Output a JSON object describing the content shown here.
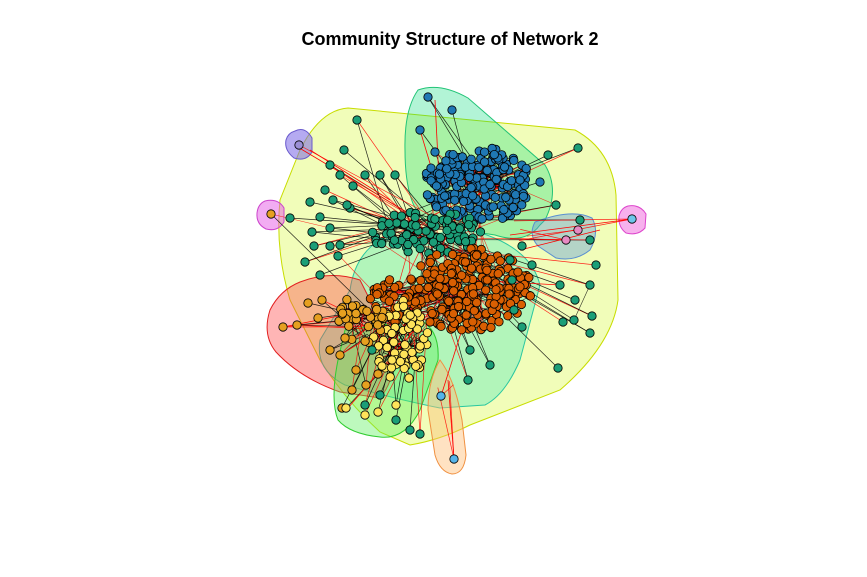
{
  "title": "Community Structure of Network 2",
  "colors": {
    "background": "#ffffff",
    "intra_edge": "#000000",
    "inter_edge": "#ff0000",
    "node_outline": "#000000"
  },
  "communities": [
    {
      "name": "blue",
      "node_color": "#1f78b4",
      "hull_fill": "rgba(0,220,120,0.30)",
      "hull_stroke": "#22c477"
    },
    {
      "name": "teal",
      "node_color": "#1b9e77",
      "hull_fill": "rgba(225,250,100,0.45)",
      "hull_stroke": "#c8dd00"
    },
    {
      "name": "dark-orange",
      "node_color": "#d95f02",
      "hull_fill": "rgba(60,230,190,0.35)",
      "hull_stroke": "#29c7a0"
    },
    {
      "name": "orange",
      "node_color": "#e6a020",
      "hull_fill": "rgba(255,70,70,0.40)",
      "hull_stroke": "#e22020"
    },
    {
      "name": "yellow",
      "node_color": "#ffe35a",
      "hull_fill": "rgba(90,240,90,0.40)",
      "hull_stroke": "#30cc30"
    },
    {
      "name": "light-blue",
      "node_color": "#56b4e9",
      "hull_fill": "rgba(255,190,120,0.45)",
      "hull_stroke": "#f09040"
    },
    {
      "name": "purple",
      "node_color": "#9b8fd6",
      "hull_fill": "rgba(120,100,230,0.55)",
      "hull_stroke": "#6a5acd"
    },
    {
      "name": "pink",
      "node_color": "#e78ac3",
      "hull_fill": "rgba(230,90,230,0.50)",
      "hull_stroke": "#cc44cc"
    },
    {
      "name": "sky-pink",
      "node_color": "#6ec6ea",
      "hull_fill": "rgba(240,100,220,0.50)",
      "hull_stroke": "#dd44cc"
    },
    {
      "name": "steel-blue",
      "node_color": "#e78ac3",
      "hull_fill": "rgba(90,150,220,0.40)",
      "hull_stroke": "#5a8fd0"
    }
  ]
}
